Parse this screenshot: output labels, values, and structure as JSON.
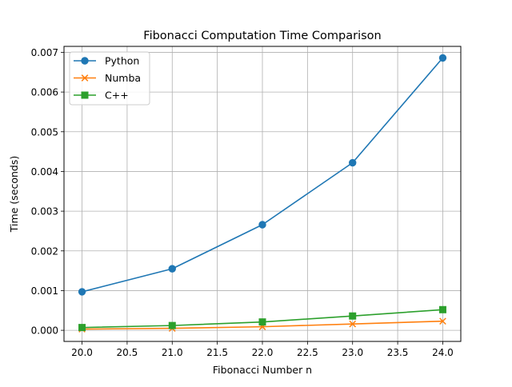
{
  "chart_data": {
    "type": "line",
    "title": "Fibonacci Computation Time Comparison",
    "xlabel": "Fibonacci Number n",
    "ylabel": "Time (seconds)",
    "x": [
      20,
      21,
      22,
      23,
      24
    ],
    "xlim": [
      19.8,
      24.2
    ],
    "ylim": [
      -0.00028,
      0.00715
    ],
    "xticks": [
      20.0,
      20.5,
      21.0,
      21.5,
      22.0,
      22.5,
      23.0,
      23.5,
      24.0
    ],
    "xtick_labels": [
      "20.0",
      "20.5",
      "21.0",
      "21.5",
      "22.0",
      "22.5",
      "23.0",
      "23.5",
      "24.0"
    ],
    "yticks": [
      0,
      0.001,
      0.002,
      0.003,
      0.004,
      0.005,
      0.006,
      0.007
    ],
    "ytick_labels": [
      "0.000",
      "0.001",
      "0.002",
      "0.003",
      "0.004",
      "0.005",
      "0.006",
      "0.007"
    ],
    "grid": true,
    "legend_position": "top-left",
    "series": [
      {
        "name": "Python",
        "color": "#1f77b4",
        "marker": "circle",
        "values": [
          0.00097,
          0.00155,
          0.00266,
          0.00422,
          0.00686
        ]
      },
      {
        "name": "Numba",
        "color": "#ff7f0e",
        "marker": "x",
        "values": [
          3e-05,
          5e-05,
          9e-05,
          0.00016,
          0.00023
        ]
      },
      {
        "name": "C++",
        "color": "#2ca02c",
        "marker": "square",
        "values": [
          7e-05,
          0.00012,
          0.00021,
          0.00036,
          0.00052
        ]
      }
    ]
  }
}
